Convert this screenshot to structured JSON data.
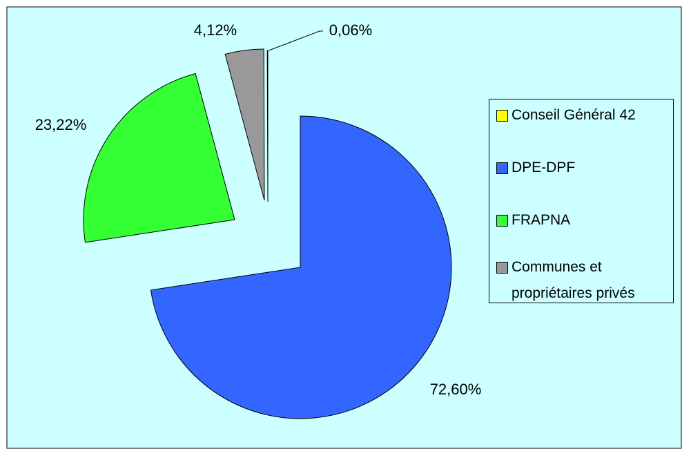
{
  "chart_data": {
    "type": "pie",
    "categories": [
      "Conseil Général 42",
      "DPE-DPF",
      "FRAPNA",
      "Communes et propriétaires privés"
    ],
    "values": [
      0.06,
      72.6,
      23.22,
      4.12
    ],
    "value_labels": [
      "0,06%",
      "72,60%",
      "23,22%",
      "4,12%"
    ],
    "colors": [
      "#ffff00",
      "#3366ff",
      "#33ff33",
      "#999999"
    ],
    "legend": "right"
  }
}
